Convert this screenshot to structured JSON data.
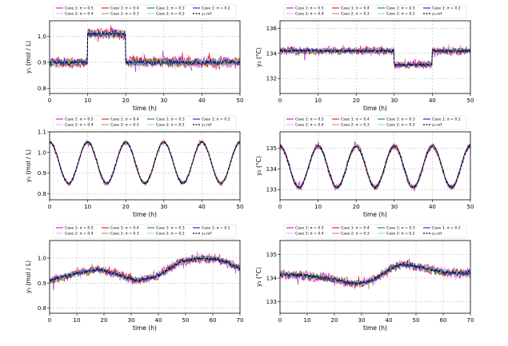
{
  "chart_data": [
    {
      "type": "line",
      "xlabel": "time (h)",
      "ylabel": "y₁ (mol / L)",
      "xlim": [
        0,
        50
      ],
      "ylim": [
        0.78,
        1.06
      ],
      "xticks": [
        0,
        10,
        20,
        30,
        40,
        50
      ],
      "yticks": [
        0.8,
        0.9,
        1.0
      ],
      "ytick_labels": [
        "0.8",
        "0.9",
        "1.0"
      ],
      "grid": true,
      "legend": {
        "position": "top",
        "entries": [
          {
            "label": "Case 1: σ = 0.5",
            "color": "#c000c0",
            "dashed": false
          },
          {
            "label": "Case 2: σ = 0.4",
            "color": "#f0a8f0",
            "dashed": false
          },
          {
            "label": "Case 1: σ = 0.4",
            "color": "#e00000",
            "dashed": false
          },
          {
            "label": "Case 2: σ = 0.3",
            "color": "#c08040",
            "dashed": false
          },
          {
            "label": "Case 1: σ = 0.3",
            "color": "#008000",
            "dashed": false
          },
          {
            "label": "Case 2: σ = 0.2",
            "color": "#90d0d0",
            "dashed": false
          },
          {
            "label": "Case 1: σ = 0.2",
            "color": "#0000e0",
            "dashed": false
          },
          {
            "label": "y₁,ref",
            "color": "#000000",
            "dashed": true
          }
        ]
      },
      "reference": {
        "kind": "step",
        "breaks": [
          [
            0,
            10,
            0.9
          ],
          [
            10,
            20,
            1.01
          ],
          [
            20,
            50,
            0.9
          ]
        ]
      },
      "noise_amplitude": 0.06
    },
    {
      "type": "line",
      "xlabel": "time (h)",
      "ylabel": "y₂ (°C)",
      "xlim": [
        0,
        50
      ],
      "ylim": [
        130.8,
        136.6
      ],
      "xticks": [
        0,
        10,
        20,
        30,
        40,
        50
      ],
      "yticks": [
        132,
        134,
        136
      ],
      "ytick_labels": [
        "132",
        "134",
        "136"
      ],
      "grid": true,
      "legend": {
        "position": "top",
        "entries": [
          {
            "label": "Case 1: σ = 0.5",
            "color": "#c000c0",
            "dashed": false
          },
          {
            "label": "Case 2: σ = 0.4",
            "color": "#f0a8f0",
            "dashed": false
          },
          {
            "label": "Case 1: σ = 0.4",
            "color": "#e00000",
            "dashed": false
          },
          {
            "label": "Case 2: σ = 0.3",
            "color": "#c08040",
            "dashed": false
          },
          {
            "label": "Case 1: σ = 0.3",
            "color": "#008000",
            "dashed": false
          },
          {
            "label": "Case 2: σ = 0.2",
            "color": "#90d0d0",
            "dashed": false
          },
          {
            "label": "Case 1: σ = 0.2",
            "color": "#0000e0",
            "dashed": false
          },
          {
            "label": "y₂,ref",
            "color": "#000000",
            "dashed": true
          }
        ]
      },
      "reference": {
        "kind": "step",
        "breaks": [
          [
            0,
            30,
            134.2
          ],
          [
            30,
            40,
            133.1
          ],
          [
            40,
            50,
            134.2
          ]
        ]
      },
      "noise_amplitude": 0.9
    },
    {
      "type": "line",
      "xlabel": "time (h)",
      "ylabel": "y₁ (mol / L)",
      "xlim": [
        0,
        50
      ],
      "ylim": [
        0.77,
        1.1
      ],
      "xticks": [
        0,
        10,
        20,
        30,
        40,
        50
      ],
      "yticks": [
        0.8,
        0.9,
        1.0,
        1.1
      ],
      "ytick_labels": [
        "0.8",
        "0.9",
        "1.0",
        "1.1"
      ],
      "grid": true,
      "legend": {
        "position": "top",
        "entries": [
          {
            "label": "Case 1: σ = 0.5",
            "color": "#c000c0",
            "dashed": false
          },
          {
            "label": "Case 2: σ = 0.4",
            "color": "#f0a8f0",
            "dashed": false
          },
          {
            "label": "Case 1: σ = 0.4",
            "color": "#e00000",
            "dashed": false
          },
          {
            "label": "Case 2: σ = 0.3",
            "color": "#c08040",
            "dashed": false
          },
          {
            "label": "Case 1: σ = 0.3",
            "color": "#008000",
            "dashed": false
          },
          {
            "label": "Case 2: σ = 0.2",
            "color": "#90d0d0",
            "dashed": false
          },
          {
            "label": "Case 1: σ = 0.2",
            "color": "#0000e0",
            "dashed": false
          },
          {
            "label": "y₁,ref",
            "color": "#000000",
            "dashed": true
          }
        ]
      },
      "reference": {
        "kind": "sine",
        "mean": 0.95,
        "amplitude": 0.1,
        "period": 10,
        "phase_shift": 0
      },
      "noise_amplitude": 0.03
    },
    {
      "type": "line",
      "xlabel": "time (h)",
      "ylabel": "y₂ (°C)",
      "xlim": [
        0,
        50
      ],
      "ylim": [
        132.5,
        135.8
      ],
      "xticks": [
        0,
        10,
        20,
        30,
        40,
        50
      ],
      "yticks": [
        133,
        134,
        135
      ],
      "ytick_labels": [
        "133",
        "134",
        "135"
      ],
      "grid": true,
      "legend": {
        "position": "top",
        "entries": [
          {
            "label": "Case 1: σ = 0.5",
            "color": "#c000c0",
            "dashed": false
          },
          {
            "label": "Case 2: σ = 0.4",
            "color": "#f0a8f0",
            "dashed": false
          },
          {
            "label": "Case 1: σ = 0.4",
            "color": "#e00000",
            "dashed": false
          },
          {
            "label": "Case 2: σ = 0.3",
            "color": "#c08040",
            "dashed": false
          },
          {
            "label": "Case 1: σ = 0.3",
            "color": "#008000",
            "dashed": false
          },
          {
            "label": "Case 2: σ = 0.2",
            "color": "#90d0d0",
            "dashed": false
          },
          {
            "label": "Case 1: σ = 0.2",
            "color": "#0000e0",
            "dashed": false
          },
          {
            "label": "y₂,ref",
            "color": "#000000",
            "dashed": true
          }
        ]
      },
      "reference": {
        "kind": "sine",
        "mean": 134.1,
        "amplitude": 1.0,
        "period": 10,
        "phase_shift": 0
      },
      "noise_amplitude": 0.4
    },
    {
      "type": "line",
      "xlabel": "time (h)",
      "ylabel": "y₁ (mol / L)",
      "xlim": [
        0,
        70
      ],
      "ylim": [
        0.78,
        1.07
      ],
      "xticks": [
        0,
        10,
        20,
        30,
        40,
        50,
        60,
        70
      ],
      "yticks": [
        0.8,
        0.9,
        1.0
      ],
      "ytick_labels": [
        "0.8",
        "0.9",
        "1.0"
      ],
      "grid": true,
      "legend": {
        "position": "top",
        "entries": [
          {
            "label": "Case 1: σ = 0.5",
            "color": "#c000c0",
            "dashed": false
          },
          {
            "label": "Case 2: σ = 0.4",
            "color": "#f0a8f0",
            "dashed": false
          },
          {
            "label": "Case 1: σ = 0.4",
            "color": "#e00000",
            "dashed": false
          },
          {
            "label": "Case 2: σ = 0.3",
            "color": "#c08040",
            "dashed": false
          },
          {
            "label": "Case 1: σ = 0.3",
            "color": "#008000",
            "dashed": false
          },
          {
            "label": "Case 2: σ = 0.2",
            "color": "#90d0d0",
            "dashed": false
          },
          {
            "label": "Case 1: σ = 0.2",
            "color": "#0000e0",
            "dashed": false
          },
          {
            "label": "y₁,ref",
            "color": "#000000",
            "dashed": true
          }
        ]
      },
      "reference": {
        "kind": "slow",
        "points": [
          [
            0,
            0.91
          ],
          [
            10,
            0.94
          ],
          [
            18,
            0.955
          ],
          [
            25,
            0.935
          ],
          [
            32,
            0.91
          ],
          [
            40,
            0.93
          ],
          [
            48,
            0.985
          ],
          [
            55,
            1.0
          ],
          [
            62,
            0.995
          ],
          [
            70,
            0.96
          ]
        ]
      },
      "noise_amplitude": 0.05
    },
    {
      "type": "line",
      "xlabel": "time (h)",
      "ylabel": "y₂ (°C)",
      "xlim": [
        0,
        70
      ],
      "ylim": [
        132.5,
        135.6
      ],
      "xticks": [
        0,
        10,
        20,
        30,
        40,
        50,
        60,
        70
      ],
      "yticks": [
        133,
        134,
        135
      ],
      "ytick_labels": [
        "133",
        "134",
        "135"
      ],
      "grid": true,
      "legend": {
        "position": "top",
        "entries": [
          {
            "label": "Case 1: σ = 0.5",
            "color": "#c000c0",
            "dashed": false
          },
          {
            "label": "Case 2: σ = 0.4",
            "color": "#f0a8f0",
            "dashed": false
          },
          {
            "label": "Case 1: σ = 0.4",
            "color": "#e00000",
            "dashed": false
          },
          {
            "label": "Case 2: σ = 0.3",
            "color": "#c08040",
            "dashed": false
          },
          {
            "label": "Case 1: σ = 0.3",
            "color": "#008000",
            "dashed": false
          },
          {
            "label": "Case 2: σ = 0.2",
            "color": "#90d0d0",
            "dashed": false
          },
          {
            "label": "Case 1: σ = 0.2",
            "color": "#0000e0",
            "dashed": false
          },
          {
            "label": "y₂,ref",
            "color": "#000000",
            "dashed": true
          }
        ]
      },
      "reference": {
        "kind": "slow",
        "points": [
          [
            0,
            134.15
          ],
          [
            10,
            134.1
          ],
          [
            20,
            133.95
          ],
          [
            27,
            133.75
          ],
          [
            33,
            133.85
          ],
          [
            40,
            134.35
          ],
          [
            45,
            134.6
          ],
          [
            52,
            134.45
          ],
          [
            60,
            134.25
          ],
          [
            70,
            134.2
          ]
        ]
      },
      "noise_amplitude": 0.55
    }
  ]
}
